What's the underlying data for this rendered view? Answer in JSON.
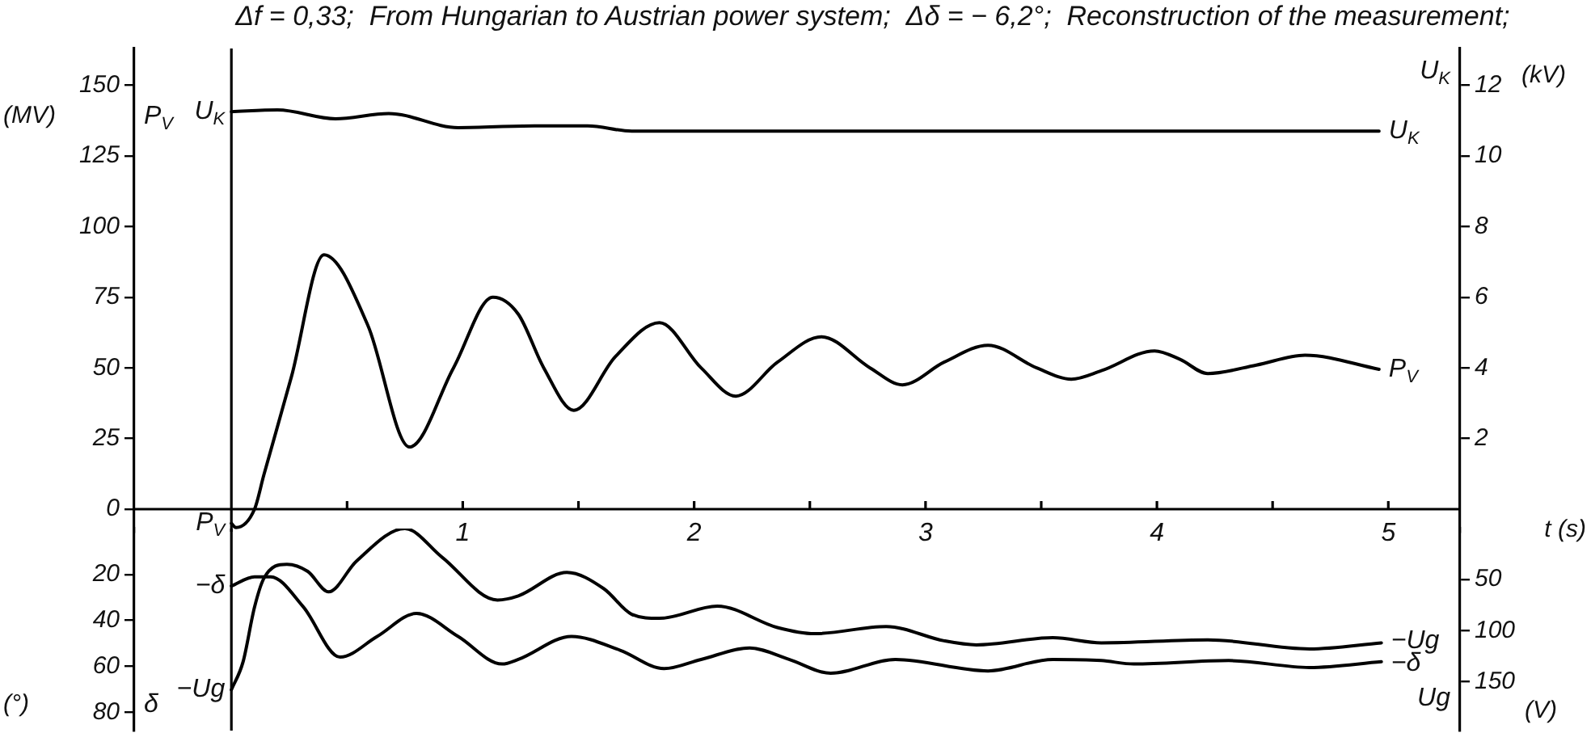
{
  "chart_data": [
    {
      "type": "line",
      "title": "Δf = 0,33;  From Hungarian to Austrian power system;  Δδ = − 6,2°;  Reconstruction of the measurement;",
      "xlabel": "t (s)",
      "ylabel": "(MV)",
      "y2label": "(kV)",
      "annotations": [
        "P$_{V}$",
        "U$_{K}$"
      ],
      "marker": "none",
      "xlim": [
        -0.42,
        5.31
      ],
      "xticks": [
        {
          "value": 0.5,
          "label": null
        },
        1,
        {
          "value": 1.5,
          "label": null
        },
        2,
        {
          "value": 2.5,
          "label": null
        },
        3,
        {
          "value": 3.5,
          "label": null
        },
        4,
        {
          "value": 4.5,
          "label": null
        },
        5
      ],
      "ylim": [
        -8,
        163
      ],
      "yticks": [
        0,
        25,
        50,
        75,
        100,
        125,
        150
      ],
      "y2lim": [
        -0.64,
        13.04
      ],
      "y2ticks": [
        2,
        4,
        6,
        8,
        10,
        12
      ],
      "ref_lines": [
        {
          "axis": "x",
          "value": 0
        }
      ],
      "series": [
        {
          "name": "U$_{K}$",
          "color": "#000000",
          "axis": "y2",
          "x": [
            0,
            0.2,
            0.45,
            0.68,
            0.98,
            1.31,
            1.54,
            1.73,
            4.96
          ],
          "values": [
            11.25,
            11.3,
            11.05,
            11.2,
            10.8,
            10.85,
            10.85,
            10.7,
            10.7
          ]
        },
        {
          "name": "P$_{V}$",
          "color": "#000000",
          "x": [
            0,
            0.02,
            0.1,
            0.14,
            0.26,
            0.4,
            0.59,
            0.77,
            0.96,
            1.13,
            1.24,
            1.35,
            1.48,
            1.66,
            1.85,
            2.03,
            2.18,
            2.36,
            2.55,
            2.76,
            2.9,
            3.08,
            3.27,
            3.48,
            3.63,
            3.76,
            3.99,
            4.1,
            4.22,
            4.43,
            4.64,
            4.96
          ],
          "values": [
            -5,
            -6.5,
            0,
            12,
            47,
            90,
            65,
            22,
            50,
            75,
            69,
            50,
            35,
            54,
            66,
            50,
            40,
            52,
            61,
            50,
            44,
            52,
            58,
            50,
            46,
            49,
            56,
            53,
            48,
            51,
            54.5,
            49.5
          ]
        }
      ]
    },
    {
      "type": "line",
      "ylabel": "(°)",
      "y2label": "(V)",
      "annotations": [
        "δ",
        "Ug"
      ],
      "marker": "none",
      "tick_labels": "y",
      "xlim": [
        -0.42,
        5.31
      ],
      "ylim": [
        88,
        0
      ],
      "yticks": [
        20,
        40,
        60,
        80
      ],
      "y2lim": [
        198,
        0
      ],
      "y2ticks": [
        50,
        100,
        150
      ],
      "ref_lines": [
        {
          "axis": "x",
          "value": 0
        }
      ],
      "series": [
        {
          "name": "−Ug",
          "color": "#000000",
          "axis": "y2",
          "x": [
            0,
            0.05,
            0.1,
            0.14,
            0.24,
            0.33,
            0.42,
            0.54,
            0.75,
            0.91,
            1.15,
            1.24,
            1.45,
            1.61,
            1.73,
            1.85,
            2.1,
            2.36,
            2.52,
            2.83,
            3.08,
            3.22,
            3.55,
            3.76,
            4.22,
            4.66,
            4.97
          ],
          "values": [
            158,
            131,
            77,
            49,
            35,
            42,
            62,
            32,
            0,
            28,
            70,
            66,
            43,
            59,
            84,
            88,
            76,
            97,
            103,
            96,
            110,
            114,
            107,
            112,
            109,
            118,
            112
          ]
        },
        {
          "name": "−δ",
          "color": "#000000",
          "x": [
            0,
            0.1,
            0.17,
            0.31,
            0.47,
            0.63,
            0.8,
            0.98,
            1.17,
            1.24,
            1.47,
            1.68,
            1.87,
            2.03,
            2.24,
            2.41,
            2.59,
            2.87,
            3.27,
            3.55,
            3.76,
            3.9,
            4.31,
            4.66,
            4.97
          ],
          "values": [
            25,
            21,
            21,
            34,
            56,
            47,
            37,
            47,
            59,
            57,
            47,
            53,
            61,
            57,
            52,
            57,
            63,
            57,
            62,
            57,
            57.5,
            59,
            57.5,
            60.5,
            58
          ]
        }
      ]
    }
  ]
}
